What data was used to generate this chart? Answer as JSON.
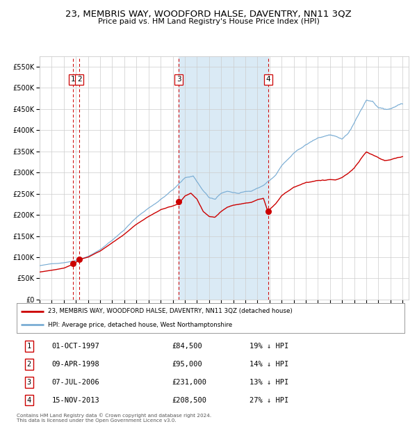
{
  "title": "23, MEMBRIS WAY, WOODFORD HALSE, DAVENTRY, NN11 3QZ",
  "subtitle": "Price paid vs. HM Land Registry's House Price Index (HPI)",
  "ylim": [
    0,
    575000
  ],
  "yticks": [
    0,
    50000,
    100000,
    150000,
    200000,
    250000,
    300000,
    350000,
    400000,
    450000,
    500000,
    550000
  ],
  "ytick_labels": [
    "£0",
    "£50K",
    "£100K",
    "£150K",
    "£200K",
    "£250K",
    "£300K",
    "£350K",
    "£400K",
    "£450K",
    "£500K",
    "£550K"
  ],
  "purchase_dates": [
    1997.75,
    1998.29,
    2006.5,
    2013.875
  ],
  "purchase_prices": [
    84500,
    95000,
    231000,
    208500
  ],
  "purchase_labels": [
    "1",
    "2",
    "3",
    "4"
  ],
  "legend_line1": "23, MEMBRIS WAY, WOODFORD HALSE, DAVENTRY, NN11 3QZ (detached house)",
  "legend_line2": "HPI: Average price, detached house, West Northamptonshire",
  "table_rows": [
    [
      "1",
      "01-OCT-1997",
      "£84,500",
      "19% ↓ HPI"
    ],
    [
      "2",
      "09-APR-1998",
      "£95,000",
      "14% ↓ HPI"
    ],
    [
      "3",
      "07-JUL-2006",
      "£231,000",
      "13% ↓ HPI"
    ],
    [
      "4",
      "15-NOV-2013",
      "£208,500",
      "27% ↓ HPI"
    ]
  ],
  "footnote": "Contains HM Land Registry data © Crown copyright and database right 2024.\nThis data is licensed under the Open Government Licence v3.0.",
  "red_line_color": "#cc0000",
  "blue_line_color": "#7aadd4",
  "blue_fill_color": "#daeaf5",
  "vline_color": "#cc0000",
  "grid_color": "#cccccc",
  "background_color": "#ffffff",
  "xlim": [
    1995.0,
    2025.5
  ],
  "xticks": [
    1995,
    1996,
    1997,
    1998,
    1999,
    2000,
    2001,
    2002,
    2003,
    2004,
    2005,
    2006,
    2007,
    2008,
    2009,
    2010,
    2011,
    2012,
    2013,
    2014,
    2015,
    2016,
    2017,
    2018,
    2019,
    2020,
    2021,
    2022,
    2023,
    2024,
    2025
  ]
}
